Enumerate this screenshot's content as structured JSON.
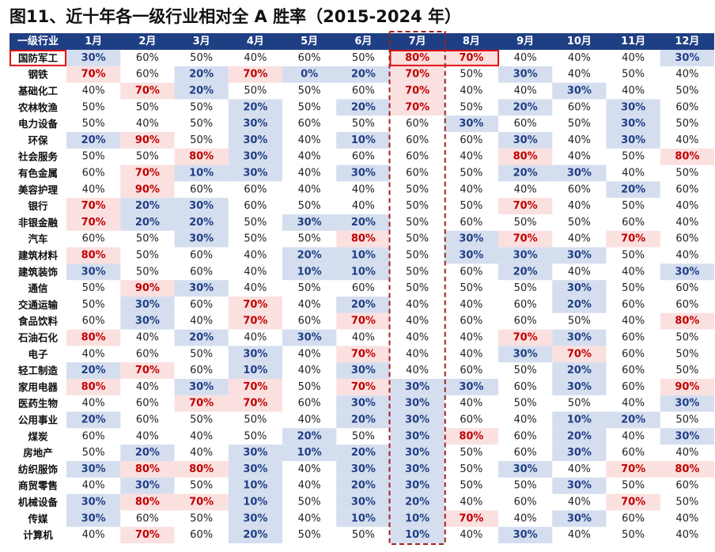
{
  "title": "图11、近十年各一级行业相对全 A 胜率（2015-2024 年）",
  "colors": {
    "header_bg": "#1f3f84",
    "high_bg": "#fbe0e0",
    "high_text": "#c00000",
    "low_bg": "#d5deef",
    "low_text": "#1f3f84",
    "normal_text": "#222222",
    "highlight_border": "#e01010",
    "july_dashed": "#a0201c"
  },
  "chart_data": {
    "type": "table",
    "title": "图11、近十年各一级行业相对全 A 胜率（2015-2024 年）",
    "header_label": "一级行业",
    "months": [
      "1月",
      "2月",
      "3月",
      "4月",
      "5月",
      "6月",
      "7月",
      "8月",
      "9月",
      "10月",
      "11月",
      "12月"
    ],
    "highlighted_row": "国防军工",
    "highlighted_cells": [
      "7月",
      "8月"
    ],
    "highlighted_column": "7月",
    "rows": [
      {
        "industry": "国防军工",
        "values": [
          "30%",
          "60%",
          "50%",
          "40%",
          "60%",
          "50%",
          "80%",
          "70%",
          "40%",
          "40%",
          "40%",
          "30%"
        ]
      },
      {
        "industry": "钢铁",
        "values": [
          "70%",
          "60%",
          "20%",
          "70%",
          "0%",
          "20%",
          "70%",
          "50%",
          "30%",
          "40%",
          "50%",
          "40%"
        ]
      },
      {
        "industry": "基础化工",
        "values": [
          "40%",
          "70%",
          "20%",
          "50%",
          "50%",
          "60%",
          "70%",
          "40%",
          "40%",
          "30%",
          "40%",
          "50%"
        ]
      },
      {
        "industry": "农林牧渔",
        "values": [
          "50%",
          "50%",
          "50%",
          "20%",
          "50%",
          "20%",
          "70%",
          "50%",
          "20%",
          "60%",
          "30%",
          "60%"
        ]
      },
      {
        "industry": "电力设备",
        "values": [
          "50%",
          "40%",
          "50%",
          "30%",
          "60%",
          "50%",
          "60%",
          "30%",
          "60%",
          "50%",
          "30%",
          "50%"
        ]
      },
      {
        "industry": "环保",
        "values": [
          "20%",
          "90%",
          "50%",
          "30%",
          "40%",
          "10%",
          "60%",
          "60%",
          "30%",
          "40%",
          "30%",
          "40%"
        ]
      },
      {
        "industry": "社会服务",
        "values": [
          "50%",
          "50%",
          "80%",
          "30%",
          "40%",
          "60%",
          "60%",
          "40%",
          "80%",
          "40%",
          "50%",
          "80%"
        ]
      },
      {
        "industry": "有色金属",
        "values": [
          "60%",
          "70%",
          "10%",
          "30%",
          "40%",
          "30%",
          "60%",
          "50%",
          "20%",
          "30%",
          "40%",
          "50%"
        ]
      },
      {
        "industry": "美容护理",
        "values": [
          "40%",
          "90%",
          "60%",
          "60%",
          "40%",
          "40%",
          "50%",
          "40%",
          "40%",
          "60%",
          "20%",
          "60%"
        ]
      },
      {
        "industry": "银行",
        "values": [
          "70%",
          "20%",
          "30%",
          "60%",
          "50%",
          "40%",
          "50%",
          "50%",
          "70%",
          "40%",
          "50%",
          "40%"
        ]
      },
      {
        "industry": "非银金融",
        "values": [
          "70%",
          "20%",
          "20%",
          "50%",
          "30%",
          "20%",
          "50%",
          "60%",
          "50%",
          "50%",
          "60%",
          "40%"
        ]
      },
      {
        "industry": "汽车",
        "values": [
          "60%",
          "50%",
          "30%",
          "50%",
          "50%",
          "80%",
          "50%",
          "30%",
          "70%",
          "40%",
          "70%",
          "60%"
        ]
      },
      {
        "industry": "建筑材料",
        "values": [
          "80%",
          "50%",
          "60%",
          "40%",
          "20%",
          "10%",
          "50%",
          "30%",
          "30%",
          "30%",
          "50%",
          "40%"
        ]
      },
      {
        "industry": "建筑装饰",
        "values": [
          "30%",
          "50%",
          "60%",
          "40%",
          "10%",
          "10%",
          "50%",
          "60%",
          "20%",
          "40%",
          "40%",
          "30%"
        ]
      },
      {
        "industry": "通信",
        "values": [
          "50%",
          "90%",
          "30%",
          "40%",
          "50%",
          "60%",
          "50%",
          "50%",
          "50%",
          "30%",
          "50%",
          "60%"
        ]
      },
      {
        "industry": "交通运输",
        "values": [
          "50%",
          "30%",
          "60%",
          "70%",
          "40%",
          "20%",
          "40%",
          "40%",
          "60%",
          "20%",
          "60%",
          "60%"
        ]
      },
      {
        "industry": "食品饮料",
        "values": [
          "60%",
          "30%",
          "40%",
          "70%",
          "60%",
          "70%",
          "40%",
          "60%",
          "60%",
          "50%",
          "40%",
          "80%"
        ]
      },
      {
        "industry": "石油石化",
        "values": [
          "80%",
          "40%",
          "20%",
          "40%",
          "30%",
          "40%",
          "40%",
          "40%",
          "70%",
          "30%",
          "60%",
          "50%"
        ]
      },
      {
        "industry": "电子",
        "values": [
          "40%",
          "60%",
          "50%",
          "30%",
          "40%",
          "70%",
          "40%",
          "40%",
          "30%",
          "70%",
          "60%",
          "50%"
        ]
      },
      {
        "industry": "轻工制造",
        "values": [
          "20%",
          "70%",
          "60%",
          "10%",
          "40%",
          "30%",
          "40%",
          "60%",
          "50%",
          "20%",
          "60%",
          "50%"
        ]
      },
      {
        "industry": "家用电器",
        "values": [
          "80%",
          "40%",
          "30%",
          "70%",
          "50%",
          "70%",
          "30%",
          "30%",
          "60%",
          "30%",
          "60%",
          "90%"
        ]
      },
      {
        "industry": "医药生物",
        "values": [
          "40%",
          "60%",
          "70%",
          "70%",
          "60%",
          "30%",
          "30%",
          "40%",
          "50%",
          "50%",
          "40%",
          "30%"
        ]
      },
      {
        "industry": "公用事业",
        "values": [
          "20%",
          "60%",
          "50%",
          "50%",
          "40%",
          "20%",
          "30%",
          "60%",
          "40%",
          "10%",
          "20%",
          "50%"
        ]
      },
      {
        "industry": "煤炭",
        "values": [
          "60%",
          "40%",
          "40%",
          "50%",
          "20%",
          "50%",
          "30%",
          "80%",
          "60%",
          "20%",
          "40%",
          "30%"
        ]
      },
      {
        "industry": "房地产",
        "values": [
          "50%",
          "20%",
          "40%",
          "30%",
          "10%",
          "20%",
          "30%",
          "50%",
          "60%",
          "30%",
          "60%",
          "40%"
        ]
      },
      {
        "industry": "纺织服饰",
        "values": [
          "30%",
          "80%",
          "80%",
          "30%",
          "40%",
          "30%",
          "30%",
          "50%",
          "30%",
          "40%",
          "70%",
          "80%"
        ]
      },
      {
        "industry": "商贸零售",
        "values": [
          "40%",
          "30%",
          "50%",
          "10%",
          "40%",
          "20%",
          "30%",
          "50%",
          "50%",
          "30%",
          "50%",
          "60%"
        ]
      },
      {
        "industry": "机械设备",
        "values": [
          "30%",
          "80%",
          "70%",
          "10%",
          "50%",
          "30%",
          "20%",
          "40%",
          "60%",
          "40%",
          "70%",
          "50%"
        ]
      },
      {
        "industry": "传媒",
        "values": [
          "30%",
          "60%",
          "50%",
          "30%",
          "40%",
          "10%",
          "10%",
          "70%",
          "40%",
          "30%",
          "60%",
          "40%"
        ]
      },
      {
        "industry": "计算机",
        "values": [
          "40%",
          "70%",
          "60%",
          "20%",
          "50%",
          "50%",
          "10%",
          "40%",
          "30%",
          "40%",
          "50%",
          "40%"
        ]
      }
    ]
  }
}
